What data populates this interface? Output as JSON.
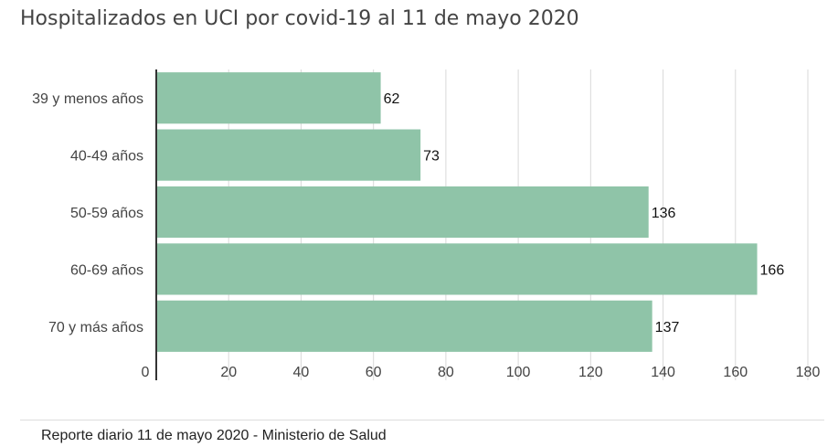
{
  "title": "Hospitalizados en UCI por covid-19 al 11 de mayo 2020",
  "source": "Reporte diario 11 de mayo 2020 - Ministerio de Salud",
  "colors": {
    "bar": "#8fc4a8",
    "grid": "#d9d9d9",
    "axis": "#333333",
    "tick_label": "#444444",
    "value_label": "#111111"
  },
  "chart_data": {
    "type": "bar",
    "orientation": "horizontal",
    "title": "Hospitalizados en UCI por covid-19 al 11 de mayo 2020",
    "categories": [
      "39 y menos años",
      "40-49 años",
      "50-59 años",
      "60-69 años",
      "70 y más años"
    ],
    "values": [
      62,
      73,
      136,
      166,
      137
    ],
    "xlim": [
      0,
      180
    ],
    "xticks": [
      0,
      20,
      40,
      60,
      80,
      100,
      120,
      140,
      160,
      180
    ],
    "xlabel": "",
    "ylabel": "",
    "grid": true,
    "data_labels": true
  }
}
